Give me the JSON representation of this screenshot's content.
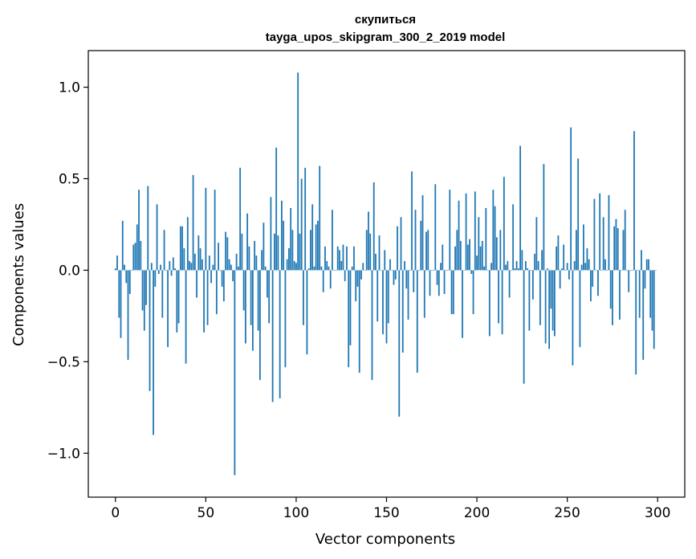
{
  "chart_data": {
    "type": "bar",
    "title": "скупиться",
    "subtitle": "tayga_upos_skipgram_300_2_2019 model",
    "xlabel": "Vector components",
    "ylabel": "Components values",
    "xlim": [
      -15,
      315
    ],
    "ylim": [
      -1.24,
      1.2
    ],
    "xticks": [
      0,
      50,
      100,
      150,
      200,
      250,
      300
    ],
    "xtick_labels": [
      "0",
      "50",
      "100",
      "150",
      "200",
      "250",
      "300"
    ],
    "yticks": [
      -1.0,
      -0.5,
      0.0,
      0.5,
      1.0
    ],
    "ytick_labels": [
      "−1.0",
      "−0.5",
      "0.0",
      "0.5",
      "1.0"
    ],
    "grid": false,
    "bar_color": "#1f77b4",
    "x": "0..299 (component index)",
    "values": [
      0.01,
      0.08,
      -0.26,
      -0.37,
      0.27,
      0.03,
      -0.07,
      -0.49,
      -0.13,
      0.0,
      0.14,
      0.15,
      0.25,
      0.44,
      0.16,
      -0.22,
      -0.33,
      -0.19,
      0.46,
      -0.66,
      0.04,
      -0.9,
      -0.09,
      0.36,
      -0.02,
      0.03,
      -0.26,
      0.22,
      0.0,
      -0.42,
      0.05,
      -0.03,
      0.07,
      0.01,
      -0.34,
      -0.29,
      0.24,
      0.24,
      0.12,
      -0.51,
      0.29,
      0.05,
      0.04,
      0.52,
      0.09,
      -0.15,
      0.19,
      0.12,
      0.06,
      -0.34,
      0.45,
      -0.3,
      0.08,
      -0.07,
      0.03,
      0.44,
      -0.24,
      0.15,
      0.0,
      -0.09,
      -0.17,
      0.21,
      0.18,
      0.06,
      0.03,
      -0.06,
      -1.12,
      0.09,
      0.02,
      0.56,
      0.2,
      -0.22,
      -0.4,
      0.31,
      0.13,
      -0.3,
      -0.44,
      0.16,
      0.08,
      -0.33,
      -0.6,
      0.11,
      0.26,
      0.02,
      -0.15,
      -0.29,
      0.4,
      -0.72,
      0.2,
      0.67,
      0.19,
      -0.7,
      0.38,
      0.27,
      -0.53,
      0.06,
      0.12,
      0.34,
      0.22,
      0.05,
      0.04,
      1.08,
      0.2,
      0.5,
      -0.3,
      0.56,
      -0.46,
      0.01,
      0.22,
      0.36,
      0.02,
      0.25,
      0.27,
      0.57,
      0.02,
      -0.12,
      0.13,
      0.05,
      0.02,
      -0.1,
      0.33,
      0.0,
      0.0,
      0.13,
      0.11,
      0.05,
      0.14,
      -0.06,
      0.13,
      -0.53,
      -0.41,
      0.02,
      0.13,
      -0.17,
      -0.09,
      -0.56,
      -0.05,
      0.04,
      0.0,
      0.22,
      0.32,
      0.2,
      -0.6,
      0.48,
      0.09,
      -0.28,
      0.19,
      0.0,
      -0.35,
      0.11,
      -0.4,
      -0.29,
      0.06,
      0.0,
      -0.08,
      -0.05,
      0.24,
      -0.8,
      0.29,
      -0.45,
      0.05,
      -0.1,
      -0.27,
      0.0,
      0.54,
      -0.12,
      0.33,
      -0.56,
      0.0,
      0.27,
      0.41,
      -0.26,
      0.21,
      0.22,
      -0.14,
      0.0,
      0.0,
      0.47,
      -0.08,
      -0.14,
      0.04,
      0.14,
      -0.13,
      0.0,
      0.0,
      0.44,
      -0.24,
      -0.24,
      0.13,
      0.22,
      0.38,
      0.16,
      -0.37,
      0.0,
      0.42,
      0.14,
      0.17,
      -0.02,
      -0.24,
      0.43,
      0.08,
      0.29,
      0.13,
      0.16,
      0.02,
      0.34,
      0.0,
      -0.36,
      0.04,
      0.44,
      0.35,
      0.18,
      -0.29,
      0.22,
      -0.35,
      0.51,
      0.03,
      0.05,
      -0.15,
      0.0,
      0.36,
      0.01,
      0.05,
      0.01,
      0.68,
      0.11,
      -0.62,
      0.05,
      0.01,
      -0.33,
      0.0,
      -0.16,
      0.09,
      0.29,
      0.05,
      -0.3,
      0.11,
      0.58,
      -0.4,
      0.01,
      -0.43,
      -0.21,
      -0.33,
      -0.36,
      0.13,
      0.19,
      -0.1,
      0.01,
      0.14,
      0.0,
      0.04,
      -0.05,
      0.78,
      -0.52,
      0.05,
      0.22,
      0.61,
      -0.42,
      0.03,
      0.25,
      0.04,
      0.12,
      0.06,
      -0.17,
      -0.09,
      0.39,
      0.0,
      -0.14,
      0.42,
      0.0,
      0.29,
      0.06,
      0.0,
      0.41,
      -0.21,
      -0.3,
      0.24,
      0.28,
      0.23,
      -0.27,
      0.0,
      0.22,
      0.33,
      0.0,
      -0.12,
      0.0,
      0.0,
      0.76,
      -0.57,
      0.0,
      -0.26,
      0.11,
      -0.49,
      -0.1,
      0.06,
      0.06,
      -0.26,
      -0.33,
      -0.43,
      0.0
    ]
  }
}
